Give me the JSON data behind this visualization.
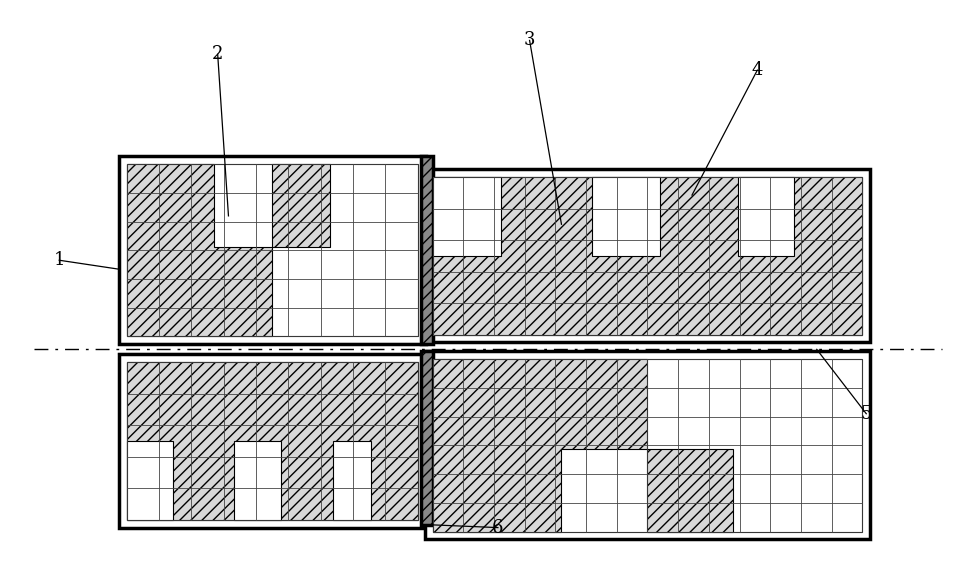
{
  "bg_color": "#ffffff",
  "line_color": "#000000",
  "fig_width": 9.76,
  "fig_height": 5.68,
  "dpi": 100
}
